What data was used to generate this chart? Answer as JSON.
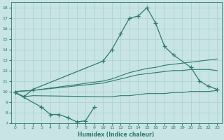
{
  "xlabel": "Humidex (Indice chaleur)",
  "xlim": [
    -0.5,
    23.5
  ],
  "ylim": [
    7,
    18.5
  ],
  "yticks": [
    7,
    8,
    9,
    10,
    11,
    12,
    13,
    14,
    15,
    16,
    17,
    18
  ],
  "xticks": [
    0,
    1,
    2,
    3,
    4,
    5,
    6,
    7,
    8,
    9,
    10,
    11,
    12,
    13,
    14,
    15,
    16,
    17,
    18,
    19,
    20,
    21,
    22,
    23
  ],
  "bg_color": "#c8e4e4",
  "line_color": "#2e7b6e",
  "grid_color": "#aacfcf",
  "line1_x": [
    0,
    1,
    2,
    10,
    11,
    12,
    13,
    14,
    15,
    16,
    17,
    18,
    20,
    21,
    22,
    23
  ],
  "line1_y": [
    9.9,
    9.5,
    10.2,
    12.9,
    14.0,
    15.5,
    17.0,
    17.2,
    18.0,
    16.5,
    14.3,
    13.5,
    12.3,
    11.0,
    10.5,
    10.2
  ],
  "line2_x": [
    0,
    2,
    10,
    11,
    12,
    13,
    14,
    15,
    16,
    17,
    18,
    19,
    20,
    21,
    22,
    23
  ],
  "line2_y": [
    10.0,
    10.1,
    11.0,
    11.2,
    11.5,
    11.8,
    12.0,
    12.2,
    12.3,
    12.5,
    12.6,
    12.7,
    12.8,
    12.9,
    13.0,
    13.1
  ],
  "line3_x": [
    0,
    2,
    10,
    11,
    12,
    13,
    14,
    15,
    16,
    17,
    18,
    19,
    20,
    21,
    22,
    23
  ],
  "line3_y": [
    10.0,
    10.1,
    10.8,
    11.0,
    11.2,
    11.4,
    11.6,
    11.7,
    11.8,
    11.9,
    12.0,
    12.0,
    12.1,
    12.1,
    12.1,
    12.0
  ],
  "line4_x": [
    0,
    3,
    4,
    5,
    6,
    7,
    8,
    9
  ],
  "line4_y": [
    9.9,
    8.5,
    7.8,
    7.8,
    7.5,
    7.1,
    7.2,
    8.5
  ],
  "line5_x": [
    0,
    1,
    2,
    10,
    11,
    12,
    13,
    14,
    15,
    16,
    17,
    18,
    19,
    20,
    21,
    22,
    23
  ],
  "line5_y": [
    9.9,
    9.5,
    9.6,
    9.5,
    9.5,
    9.6,
    9.6,
    9.7,
    9.8,
    9.8,
    9.8,
    9.9,
    9.9,
    10.0,
    10.0,
    10.0,
    10.1
  ]
}
